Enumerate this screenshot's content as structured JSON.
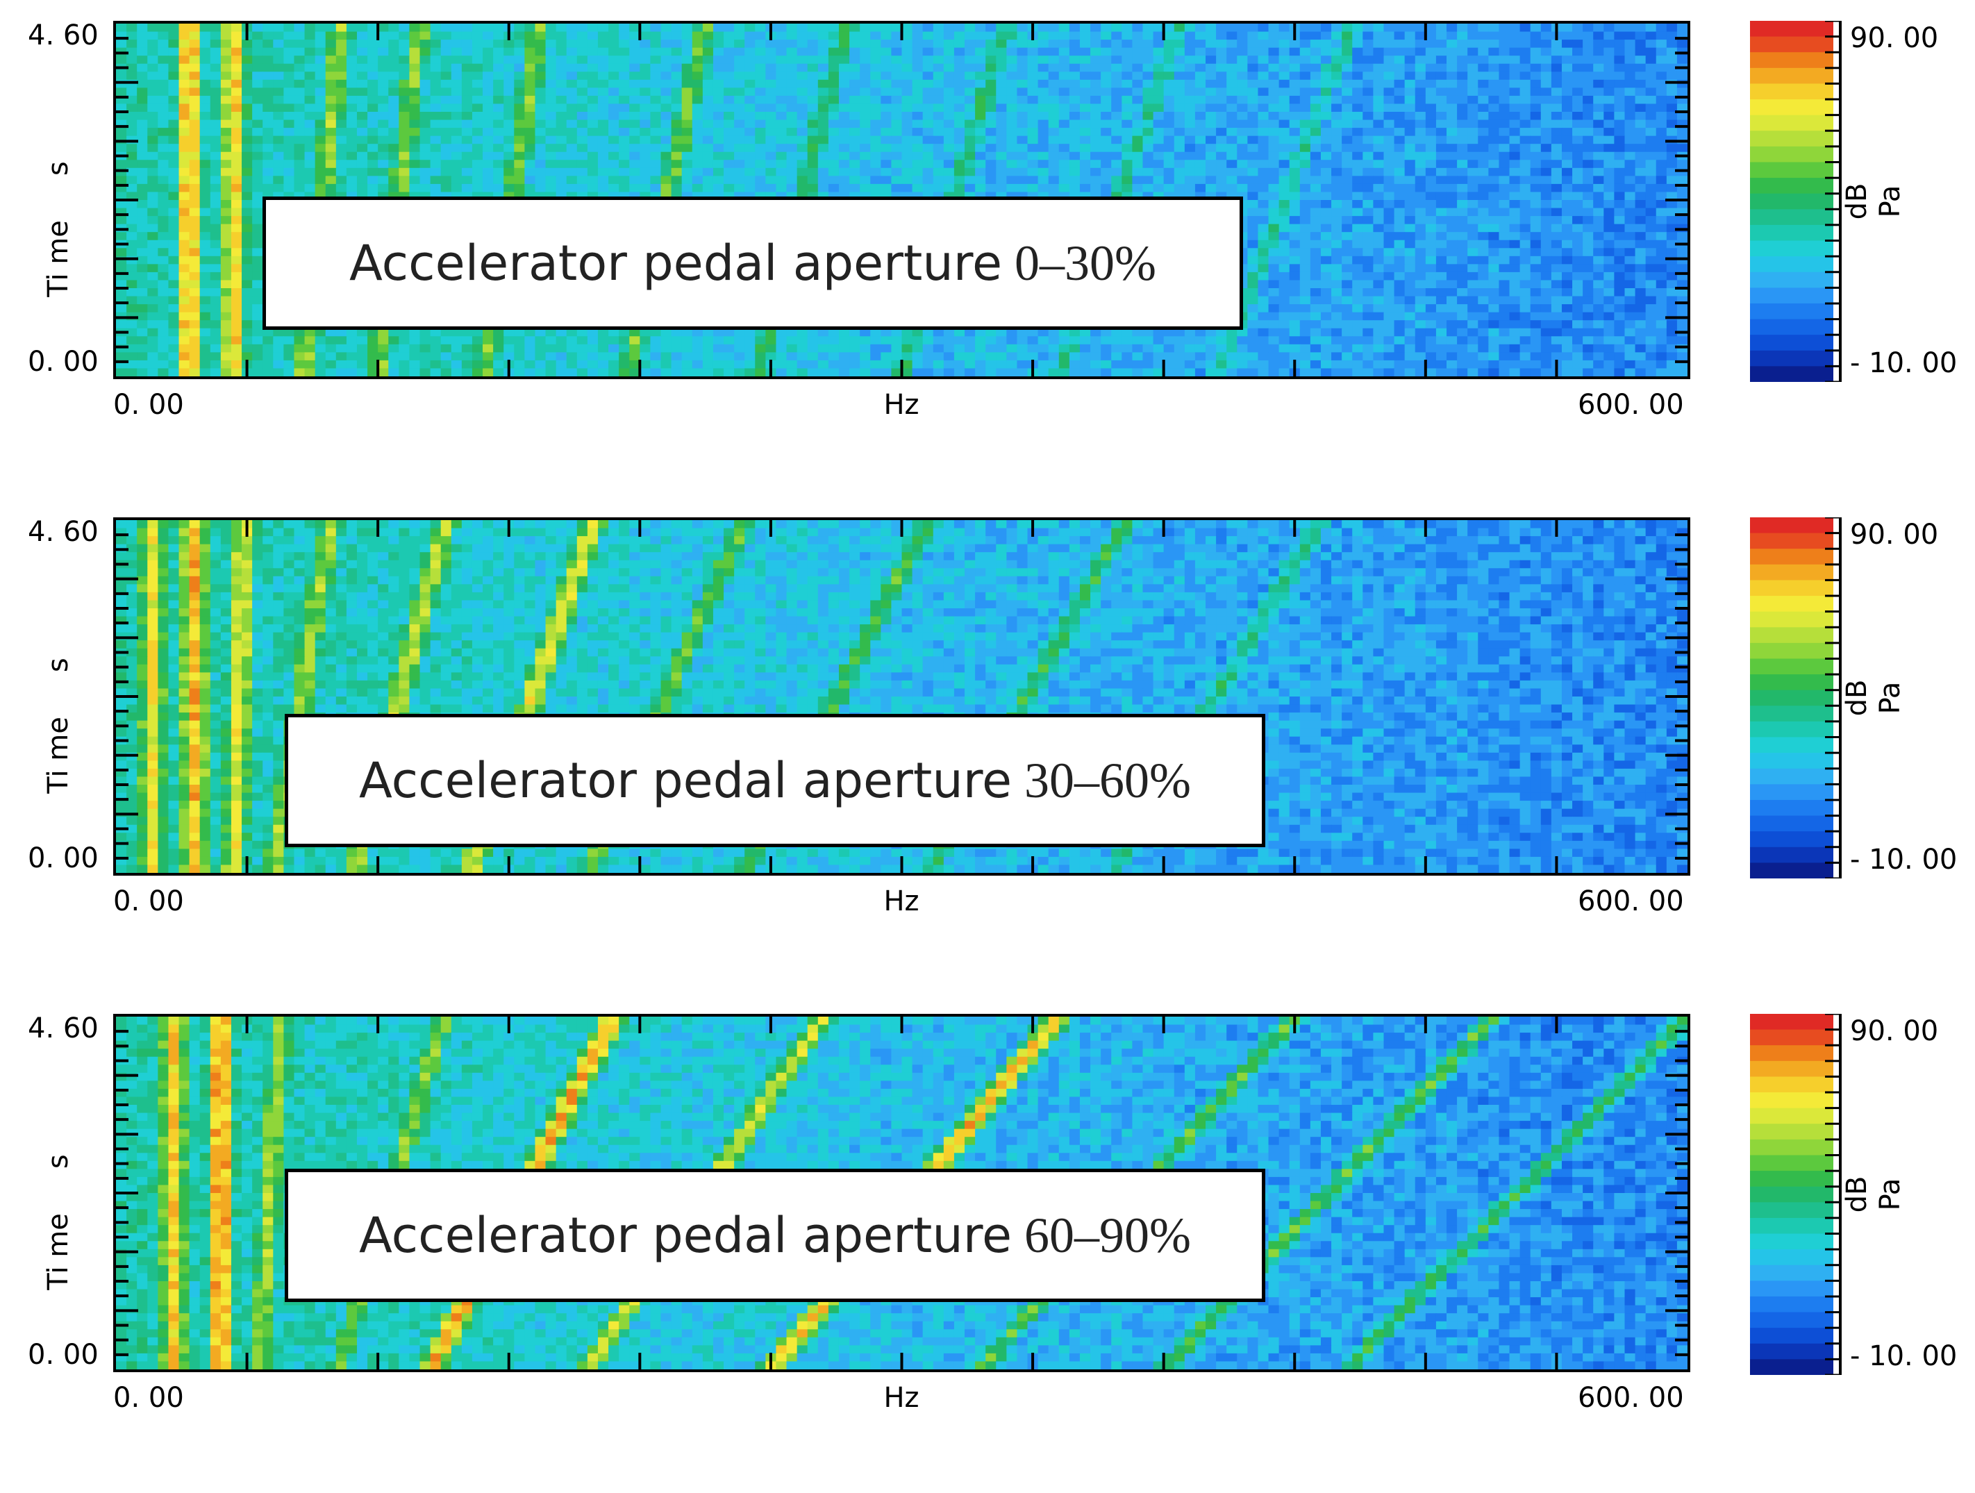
{
  "chart_data": [
    {
      "type": "heatmap",
      "annotation": {
        "text": "Accelerator pedal aperture",
        "range": "0–30%"
      },
      "ylabel": "Ti me\ns",
      "xlabel": "Hz",
      "x_tick_labels": [
        "0. 00",
        "600. 00"
      ],
      "y_tick_labels": [
        "4. 60",
        "0. 00"
      ],
      "xlim": [
        0,
        600
      ],
      "ylim": [
        0,
        4.6
      ],
      "colorbar": {
        "min_label": "- 10. 00",
        "max_label": "90. 00",
        "unit": "dB\nPa",
        "range": [
          -10,
          90
        ]
      },
      "ridges": [
        {
          "f0": 28,
          "slope": 0,
          "level": 0.86
        },
        {
          "f0": 45,
          "slope": 0,
          "level": 0.8
        },
        {
          "f0": 72,
          "slope": 14,
          "level": 0.66
        },
        {
          "f0": 100,
          "slope": 16,
          "level": 0.64
        },
        {
          "f0": 140,
          "slope": 22,
          "level": 0.62
        },
        {
          "f0": 195,
          "slope": 30,
          "level": 0.6
        },
        {
          "f0": 245,
          "slope": 34,
          "level": 0.52
        },
        {
          "f0": 300,
          "slope": 40,
          "level": 0.48
        },
        {
          "f0": 360,
          "slope": 46,
          "level": 0.45
        },
        {
          "f0": 420,
          "slope": 52,
          "level": 0.42
        }
      ]
    },
    {
      "type": "heatmap",
      "annotation": {
        "text": "Accelerator pedal aperture",
        "range": "30–60%"
      },
      "ylabel": "Ti me\ns",
      "xlabel": "Hz",
      "x_tick_labels": [
        "0. 00",
        "600. 00"
      ],
      "y_tick_labels": [
        "4. 60",
        "0. 00"
      ],
      "xlim": [
        0,
        600
      ],
      "ylim": [
        0,
        4.6
      ],
      "colorbar": {
        "min_label": "- 10. 00",
        "max_label": "90. 00",
        "unit": "dB\nPa",
        "range": [
          -10,
          90
        ]
      },
      "ridges": [
        {
          "f0": 14,
          "slope": 0,
          "level": 0.76
        },
        {
          "f0": 30,
          "slope": 0,
          "level": 0.84
        },
        {
          "f0": 45,
          "slope": 4,
          "level": 0.74
        },
        {
          "f0": 60,
          "slope": 22,
          "level": 0.66
        },
        {
          "f0": 90,
          "slope": 36,
          "level": 0.7
        },
        {
          "f0": 135,
          "slope": 48,
          "level": 0.74
        },
        {
          "f0": 180,
          "slope": 60,
          "level": 0.6
        },
        {
          "f0": 240,
          "slope": 70,
          "level": 0.56
        },
        {
          "f0": 310,
          "slope": 76,
          "level": 0.52
        },
        {
          "f0": 380,
          "slope": 80,
          "level": 0.47
        }
      ]
    },
    {
      "type": "heatmap",
      "annotation": {
        "text": "Accelerator pedal aperture",
        "range": "60–90%"
      },
      "ylabel": "Ti me\ns",
      "xlabel": "Hz",
      "x_tick_labels": [
        "0. 00",
        "600. 00"
      ],
      "y_tick_labels": [
        "4. 60",
        "0. 00"
      ],
      "xlim": [
        0,
        600
      ],
      "ylim": [
        0,
        4.6
      ],
      "colorbar": {
        "min_label": "- 10. 00",
        "max_label": "90. 00",
        "unit": "dB\nPa",
        "range": [
          -10,
          90
        ]
      },
      "ridges": [
        {
          "f0": 22,
          "slope": 0,
          "level": 0.8
        },
        {
          "f0": 40,
          "slope": 0,
          "level": 0.9
        },
        {
          "f0": 55,
          "slope": 8,
          "level": 0.66
        },
        {
          "f0": 85,
          "slope": 40,
          "level": 0.62
        },
        {
          "f0": 120,
          "slope": 70,
          "level": 0.86
        },
        {
          "f0": 180,
          "slope": 90,
          "level": 0.72
        },
        {
          "f0": 250,
          "slope": 110,
          "level": 0.84
        },
        {
          "f0": 330,
          "slope": 120,
          "level": 0.58
        },
        {
          "f0": 400,
          "slope": 126,
          "level": 0.56
        },
        {
          "f0": 470,
          "slope": 130,
          "level": 0.52
        }
      ]
    }
  ]
}
